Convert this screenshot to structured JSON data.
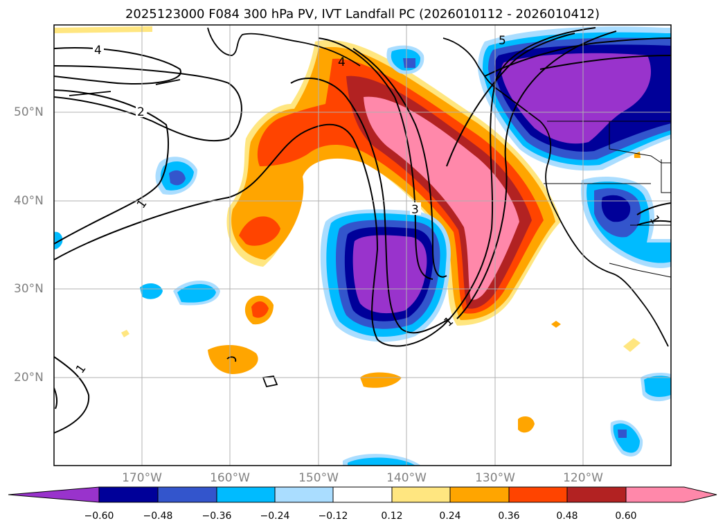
{
  "title": "2025123000 F084 300 hPa PV, IVT Landfall PC (2026010112 - 2026010412)",
  "lat_labels": [
    "50°N",
    "40°N",
    "30°N",
    "20°N"
  ],
  "lon_labels": [
    "170°W",
    "160°W",
    "150°W",
    "140°W",
    "130°W",
    "120°W"
  ],
  "contour_labels": [
    "4",
    "2",
    "1",
    "4",
    "5",
    "3",
    "1",
    "1",
    "1"
  ],
  "colorbar": {
    "tick_labels": [
      "−0.60",
      "−0.48",
      "−0.36",
      "−0.24",
      "−0.12",
      "0.12",
      "0.24",
      "0.36",
      "0.48",
      "0.60"
    ],
    "colors": [
      "#9933cc",
      "#000099",
      "#3355cc",
      "#00bbff",
      "#aaddff",
      "#ffffff",
      "#ffe680",
      "#ffa500",
      "#ff4400",
      "#b22222",
      "#ff88aa",
      "#ff88aa"
    ]
  }
}
